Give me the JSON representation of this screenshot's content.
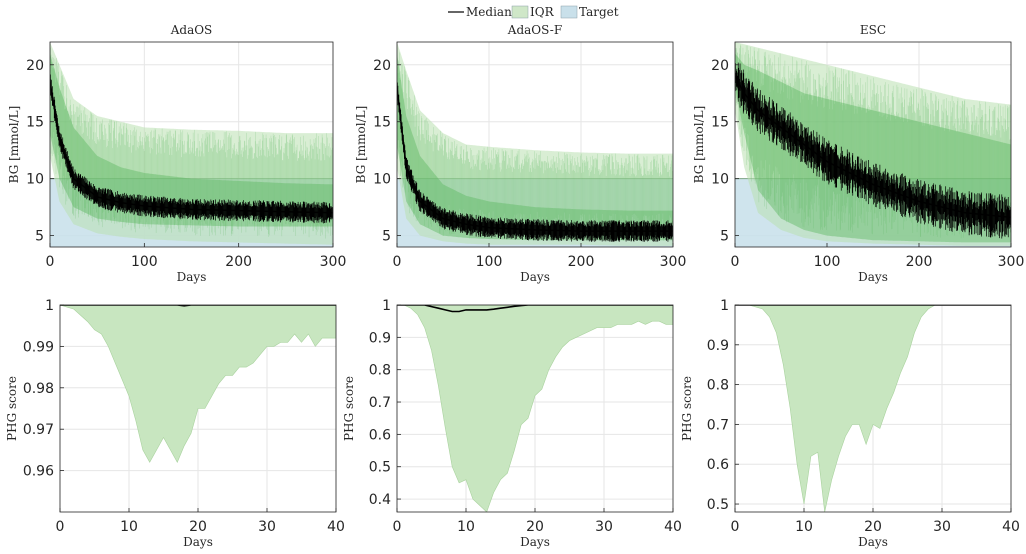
{
  "legend": {
    "items": [
      {
        "label": "Median",
        "kind": "line",
        "color": "#000000"
      },
      {
        "label": "IQR",
        "kind": "patch",
        "color": "#cfe7c8"
      },
      {
        "label": "Target",
        "kind": "patch",
        "color": "#c9e0ea"
      }
    ]
  },
  "colors": {
    "median": "#000000",
    "iqr_fill": "#c8e6c0",
    "iqr_light": "#b9e0b0",
    "iqr_dark": "#5eb862",
    "target_fill": "#c7dfea",
    "target_line": "#7fa688",
    "grid": "#e6e6e6",
    "axis": "#262626"
  },
  "chart_data": [
    {
      "type": "area",
      "title": "AdaOS",
      "xlabel": "Days",
      "ylabel": "BG [mmol/L]",
      "xlim": [
        0,
        300
      ],
      "ylim": [
        4,
        22
      ],
      "xticks": [
        0,
        100,
        200,
        300
      ],
      "yticks": [
        5,
        10,
        15,
        20
      ],
      "grid": true,
      "target_upper": 10,
      "x": [
        0,
        10,
        25,
        50,
        75,
        100,
        150,
        200,
        250,
        300
      ],
      "median": [
        18.5,
        13.5,
        10.0,
        8.4,
        7.9,
        7.6,
        7.3,
        7.2,
        7.1,
        7.0
      ],
      "iqr_lower": [
        14.0,
        10.0,
        7.5,
        6.5,
        6.2,
        6.0,
        5.9,
        5.8,
        5.8,
        5.8
      ],
      "iqr_upper": [
        21.0,
        18.0,
        14.5,
        12.0,
        11.0,
        10.5,
        10.0,
        9.8,
        9.6,
        9.5
      ],
      "outer_lower": [
        12.0,
        8.0,
        6.0,
        5.2,
        4.9,
        4.7,
        4.5,
        4.4,
        4.3,
        4.2
      ],
      "outer_upper": [
        22.0,
        20.0,
        17.0,
        15.5,
        15.0,
        14.5,
        14.3,
        14.2,
        14.0,
        14.0
      ]
    },
    {
      "type": "area",
      "title": "AdaOS-F",
      "xlabel": "Days",
      "ylabel": "BG [mmol/L]",
      "xlim": [
        0,
        300
      ],
      "ylim": [
        4,
        22
      ],
      "xticks": [
        0,
        100,
        200,
        300
      ],
      "yticks": [
        5,
        10,
        15,
        20
      ],
      "grid": true,
      "target_upper": 10,
      "x": [
        0,
        10,
        25,
        50,
        75,
        100,
        150,
        200,
        250,
        300
      ],
      "median": [
        18.0,
        11.0,
        8.0,
        6.5,
        6.0,
        5.7,
        5.5,
        5.4,
        5.4,
        5.4
      ],
      "iqr_lower": [
        13.0,
        8.0,
        6.0,
        5.0,
        4.8,
        4.7,
        4.6,
        4.6,
        4.6,
        4.6
      ],
      "iqr_upper": [
        21.0,
        15.5,
        12.0,
        9.5,
        8.5,
        8.0,
        7.5,
        7.3,
        7.2,
        7.2
      ],
      "outer_lower": [
        11.0,
        6.5,
        5.0,
        4.5,
        4.3,
        4.2,
        4.2,
        4.2,
        4.1,
        4.1
      ],
      "outer_upper": [
        22.0,
        19.5,
        16.0,
        14.0,
        13.0,
        12.8,
        12.5,
        12.3,
        12.2,
        12.2
      ]
    },
    {
      "type": "area",
      "title": "ESC",
      "xlabel": "Days",
      "ylabel": "BG [mmol/L]",
      "xlim": [
        0,
        300
      ],
      "ylim": [
        4,
        22
      ],
      "xticks": [
        0,
        100,
        200,
        300
      ],
      "yticks": [
        5,
        10,
        15,
        20
      ],
      "grid": true,
      "target_upper": 10,
      "x": [
        0,
        10,
        25,
        50,
        75,
        100,
        150,
        200,
        250,
        300
      ],
      "median": [
        19.0,
        17.5,
        16.0,
        14.5,
        13.0,
        11.5,
        9.5,
        8.0,
        7.0,
        6.6
      ],
      "iqr_lower": [
        18.0,
        14.0,
        9.0,
        6.5,
        5.5,
        5.0,
        4.6,
        4.5,
        4.4,
        4.4
      ],
      "iqr_upper": [
        21.0,
        20.0,
        19.5,
        18.5,
        17.5,
        17.0,
        16.0,
        15.0,
        14.0,
        13.0
      ],
      "outer_lower": [
        16.0,
        11.0,
        7.0,
        5.5,
        4.8,
        4.5,
        4.3,
        4.2,
        4.1,
        4.1
      ],
      "outer_upper": [
        22.0,
        21.8,
        21.5,
        21.0,
        20.5,
        20.0,
        19.0,
        18.0,
        17.0,
        16.5
      ]
    },
    {
      "type": "area",
      "title": "",
      "xlabel": "Days",
      "ylabel": "PHG score",
      "xlim": [
        0,
        40
      ],
      "ylim": [
        0.95,
        1.0
      ],
      "xticks": [
        0,
        10,
        20,
        30,
        40
      ],
      "yticks": [
        0.96,
        0.97,
        0.98,
        0.99,
        1
      ],
      "ytick_labels": [
        "0.96",
        "0.97",
        "0.98",
        "0.99",
        "1"
      ],
      "grid": true,
      "x": [
        0,
        2,
        4,
        5,
        6,
        7,
        8,
        9,
        10,
        11,
        12,
        13,
        14,
        15,
        16,
        17,
        18,
        19,
        20,
        21,
        22,
        23,
        24,
        25,
        26,
        27,
        28,
        29,
        30,
        31,
        32,
        33,
        34,
        35,
        36,
        37,
        38,
        39,
        40
      ],
      "iqr_lower": [
        1.0,
        0.999,
        0.996,
        0.994,
        0.993,
        0.99,
        0.986,
        0.982,
        0.978,
        0.972,
        0.965,
        0.962,
        0.965,
        0.968,
        0.965,
        0.962,
        0.966,
        0.969,
        0.975,
        0.975,
        0.978,
        0.981,
        0.983,
        0.983,
        0.985,
        0.985,
        0.986,
        0.988,
        0.99,
        0.99,
        0.991,
        0.991,
        0.993,
        0.991,
        0.993,
        0.99,
        0.992,
        0.992,
        0.992
      ],
      "median": [
        1.0,
        1.0,
        1.0,
        1.0,
        1.0,
        1.0,
        1.0,
        1.0,
        1.0,
        1.0,
        1.0,
        1.0,
        1.0,
        1.0,
        1.0,
        1.0,
        0.9998,
        1.0,
        1.0,
        1.0,
        1.0,
        1.0,
        1.0,
        1.0,
        1.0,
        1.0,
        1.0,
        1.0,
        1.0,
        1.0,
        1.0,
        1.0,
        1.0,
        1.0,
        1.0,
        1.0,
        1.0,
        1.0,
        1.0
      ],
      "iqr_upper": [
        1.0,
        1.0,
        1.0,
        1.0,
        1.0,
        1.0,
        1.0,
        1.0,
        1.0,
        1.0,
        1.0,
        1.0,
        1.0,
        1.0,
        1.0,
        1.0,
        1.0,
        1.0,
        1.0,
        1.0,
        1.0,
        1.0,
        1.0,
        1.0,
        1.0,
        1.0,
        1.0,
        1.0,
        1.0,
        1.0,
        1.0,
        1.0,
        1.0,
        1.0,
        1.0,
        1.0,
        1.0,
        1.0,
        1.0
      ]
    },
    {
      "type": "area",
      "title": "",
      "xlabel": "Days",
      "ylabel": "PHG score",
      "xlim": [
        0,
        40
      ],
      "ylim": [
        0.36,
        1.0
      ],
      "xticks": [
        0,
        10,
        20,
        30,
        40
      ],
      "yticks": [
        0.4,
        0.5,
        0.6,
        0.7,
        0.8,
        0.9,
        1
      ],
      "ytick_labels": [
        "0.4",
        "0.5",
        "0.6",
        "0.7",
        "0.8",
        "0.9",
        "1"
      ],
      "grid": true,
      "x": [
        0,
        1,
        2,
        3,
        4,
        5,
        6,
        7,
        8,
        9,
        10,
        11,
        12,
        13,
        14,
        15,
        16,
        17,
        18,
        19,
        20,
        21,
        22,
        23,
        24,
        25,
        26,
        27,
        28,
        29,
        30,
        31,
        32,
        33,
        34,
        35,
        36,
        37,
        38,
        39,
        40
      ],
      "iqr_lower": [
        1.0,
        1.0,
        0.99,
        0.97,
        0.93,
        0.86,
        0.75,
        0.62,
        0.5,
        0.45,
        0.46,
        0.4,
        0.38,
        0.36,
        0.42,
        0.46,
        0.48,
        0.55,
        0.63,
        0.65,
        0.72,
        0.74,
        0.8,
        0.84,
        0.87,
        0.89,
        0.9,
        0.91,
        0.92,
        0.93,
        0.93,
        0.93,
        0.94,
        0.94,
        0.94,
        0.95,
        0.94,
        0.95,
        0.95,
        0.94,
        0.94
      ],
      "median": [
        1.0,
        1.0,
        1.0,
        1.0,
        1.0,
        0.995,
        0.99,
        0.985,
        0.98,
        0.98,
        0.985,
        0.985,
        0.985,
        0.985,
        0.987,
        0.99,
        0.993,
        0.996,
        0.998,
        1.0,
        1.0,
        1.0,
        1.0,
        1.0,
        1.0,
        1.0,
        1.0,
        1.0,
        1.0,
        1.0,
        1.0,
        1.0,
        1.0,
        1.0,
        1.0,
        1.0,
        1.0,
        1.0,
        1.0,
        1.0,
        1.0
      ],
      "iqr_upper": [
        1.0,
        1.0,
        1.0,
        1.0,
        1.0,
        1.0,
        1.0,
        1.0,
        1.0,
        1.0,
        1.0,
        1.0,
        1.0,
        1.0,
        1.0,
        1.0,
        1.0,
        1.0,
        1.0,
        1.0,
        1.0,
        1.0,
        1.0,
        1.0,
        1.0,
        1.0,
        1.0,
        1.0,
        1.0,
        1.0,
        1.0,
        1.0,
        1.0,
        1.0,
        1.0,
        1.0,
        1.0,
        1.0,
        1.0,
        1.0,
        1.0
      ]
    },
    {
      "type": "area",
      "title": "",
      "xlabel": "Days",
      "ylabel": "PHG score",
      "xlim": [
        0,
        40
      ],
      "ylim": [
        0.48,
        1.0
      ],
      "xticks": [
        0,
        10,
        20,
        30,
        40
      ],
      "yticks": [
        0.5,
        0.6,
        0.7,
        0.8,
        0.9,
        1
      ],
      "ytick_labels": [
        "0.5",
        "0.6",
        "0.7",
        "0.8",
        "0.9",
        "1"
      ],
      "grid": true,
      "x": [
        0,
        2,
        4,
        5,
        6,
        7,
        8,
        9,
        10,
        11,
        12,
        13,
        14,
        15,
        16,
        17,
        18,
        19,
        20,
        21,
        22,
        23,
        24,
        25,
        26,
        27,
        28,
        29,
        30,
        32,
        34,
        36,
        38,
        40
      ],
      "iqr_lower": [
        1.0,
        1.0,
        0.99,
        0.97,
        0.93,
        0.85,
        0.74,
        0.6,
        0.5,
        0.62,
        0.63,
        0.48,
        0.56,
        0.62,
        0.67,
        0.7,
        0.7,
        0.65,
        0.7,
        0.69,
        0.74,
        0.78,
        0.83,
        0.87,
        0.93,
        0.97,
        0.99,
        1.0,
        1.0,
        1.0,
        1.0,
        1.0,
        1.0,
        1.0
      ],
      "median": [
        1.0,
        1.0,
        1.0,
        1.0,
        1.0,
        1.0,
        1.0,
        1.0,
        1.0,
        1.0,
        1.0,
        1.0,
        1.0,
        1.0,
        1.0,
        1.0,
        1.0,
        1.0,
        1.0,
        1.0,
        1.0,
        1.0,
        1.0,
        1.0,
        1.0,
        1.0,
        1.0,
        1.0,
        1.0,
        1.0,
        1.0,
        1.0,
        1.0,
        1.0
      ],
      "iqr_upper": [
        1.0,
        1.0,
        1.0,
        1.0,
        1.0,
        1.0,
        1.0,
        1.0,
        1.0,
        1.0,
        1.0,
        1.0,
        1.0,
        1.0,
        1.0,
        1.0,
        1.0,
        1.0,
        1.0,
        1.0,
        1.0,
        1.0,
        1.0,
        1.0,
        1.0,
        1.0,
        1.0,
        1.0,
        1.0,
        1.0,
        1.0,
        1.0,
        1.0,
        1.0
      ]
    }
  ]
}
